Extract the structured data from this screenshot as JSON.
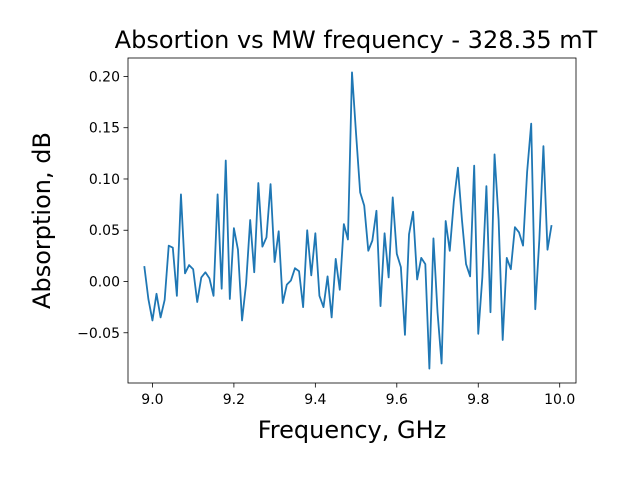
{
  "chart_data": {
    "type": "line",
    "title": "Absortion vs MW frequency - 328.35 mT",
    "xlabel": "Frequency, GHz",
    "ylabel": "Absorption, dB",
    "xlim": [
      8.94,
      10.04
    ],
    "ylim": [
      -0.099,
      0.218
    ],
    "xticks": [
      9.0,
      9.2,
      9.4,
      9.6,
      9.8,
      10.0
    ],
    "xtick_labels": [
      "9.0",
      "9.2",
      "9.4",
      "9.6",
      "9.8",
      "10.0"
    ],
    "yticks": [
      -0.05,
      0.0,
      0.05,
      0.1,
      0.15,
      0.2
    ],
    "ytick_labels": [
      "−0.05",
      "0.00",
      "0.05",
      "0.10",
      "0.15",
      "0.20"
    ],
    "grid": false,
    "series": [
      {
        "color": "#1f77b4",
        "x": [
          8.98,
          8.99,
          9.0,
          9.01,
          9.02,
          9.03,
          9.04,
          9.05,
          9.06,
          9.07,
          9.08,
          9.09,
          9.1,
          9.11,
          9.12,
          9.13,
          9.14,
          9.15,
          9.16,
          9.17,
          9.18,
          9.19,
          9.2,
          9.21,
          9.22,
          9.23,
          9.24,
          9.25,
          9.26,
          9.27,
          9.28,
          9.29,
          9.3,
          9.31,
          9.32,
          9.33,
          9.34,
          9.35,
          9.36,
          9.37,
          9.38,
          9.39,
          9.4,
          9.41,
          9.42,
          9.43,
          9.44,
          9.45,
          9.46,
          9.47,
          9.48,
          9.49,
          9.5,
          9.51,
          9.52,
          9.53,
          9.54,
          9.55,
          9.56,
          9.57,
          9.58,
          9.59,
          9.6,
          9.61,
          9.62,
          9.63,
          9.64,
          9.65,
          9.66,
          9.67,
          9.68,
          9.69,
          9.7,
          9.71,
          9.72,
          9.73,
          9.74,
          9.75,
          9.76,
          9.77,
          9.78,
          9.79,
          9.8,
          9.81,
          9.82,
          9.83,
          9.84,
          9.85,
          9.86,
          9.87,
          9.88,
          9.89,
          9.9,
          9.91,
          9.92,
          9.93,
          9.94,
          9.95,
          9.96,
          9.97,
          9.98
        ],
        "y": [
          0.015,
          -0.017,
          -0.038,
          -0.012,
          -0.035,
          -0.018,
          0.035,
          0.033,
          -0.014,
          0.085,
          0.008,
          0.016,
          0.012,
          -0.02,
          0.004,
          0.009,
          0.003,
          -0.014,
          0.085,
          -0.007,
          0.118,
          -0.017,
          0.052,
          0.031,
          -0.038,
          -0.002,
          0.06,
          0.009,
          0.096,
          0.034,
          0.043,
          0.095,
          0.019,
          0.049,
          -0.021,
          -0.003,
          0.001,
          0.013,
          0.01,
          -0.025,
          0.05,
          0.006,
          0.047,
          -0.014,
          -0.025,
          0.005,
          -0.035,
          0.022,
          -0.008,
          0.056,
          0.041,
          0.204,
          0.144,
          0.087,
          0.074,
          0.03,
          0.04,
          0.069,
          -0.024,
          0.047,
          0.004,
          0.082,
          0.027,
          0.014,
          -0.052,
          0.046,
          0.068,
          0.002,
          0.023,
          0.017,
          -0.085,
          0.042,
          -0.03,
          -0.08,
          0.059,
          0.03,
          0.078,
          0.111,
          0.06,
          0.017,
          0.005,
          0.113,
          -0.051,
          0.004,
          0.093,
          -0.03,
          0.124,
          0.06,
          -0.057,
          0.023,
          0.012,
          0.053,
          0.048,
          0.035,
          0.107,
          0.154,
          -0.027,
          0.041,
          0.132,
          0.031,
          0.055
        ]
      }
    ]
  }
}
